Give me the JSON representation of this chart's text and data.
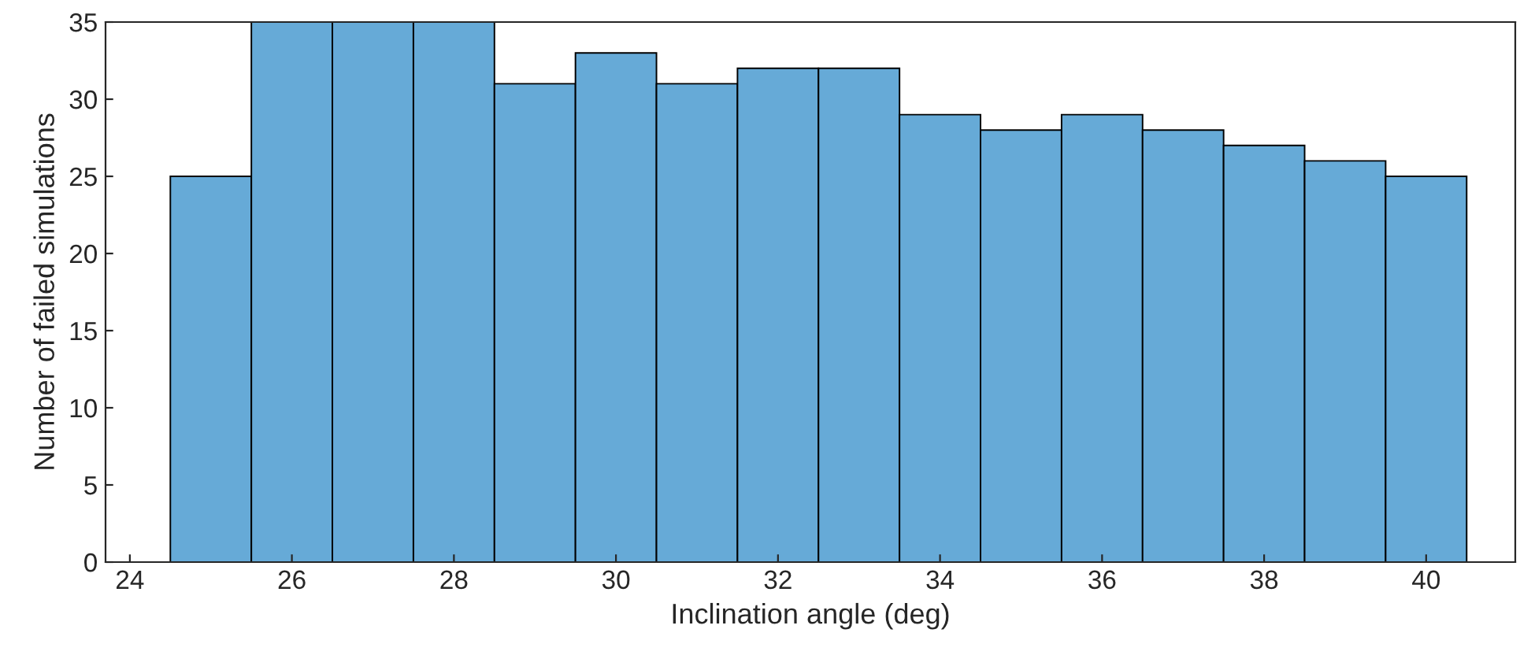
{
  "chart_data": {
    "type": "histogram",
    "xlabel": "Inclination angle (deg)",
    "ylabel": "Number of failed simulations",
    "bins": [
      24.5,
      25.5,
      26.5,
      27.5,
      28.5,
      29.5,
      30.5,
      31.5,
      32.5,
      33.5,
      34.5,
      35.5,
      36.5,
      37.5,
      38.5,
      39.5,
      40.5
    ],
    "values": [
      25,
      35,
      35,
      35,
      31,
      33,
      31,
      32,
      32,
      29,
      28,
      29,
      28,
      27,
      26,
      25
    ],
    "color": "#66aad7",
    "xlim": [
      23.7,
      41.1
    ],
    "xticks": [
      24,
      26,
      28,
      30,
      32,
      34,
      36,
      38,
      40
    ],
    "ylim": [
      0,
      35
    ],
    "yticks": [
      0,
      5,
      10,
      15,
      20,
      25,
      30,
      35
    ],
    "grid": false
  }
}
